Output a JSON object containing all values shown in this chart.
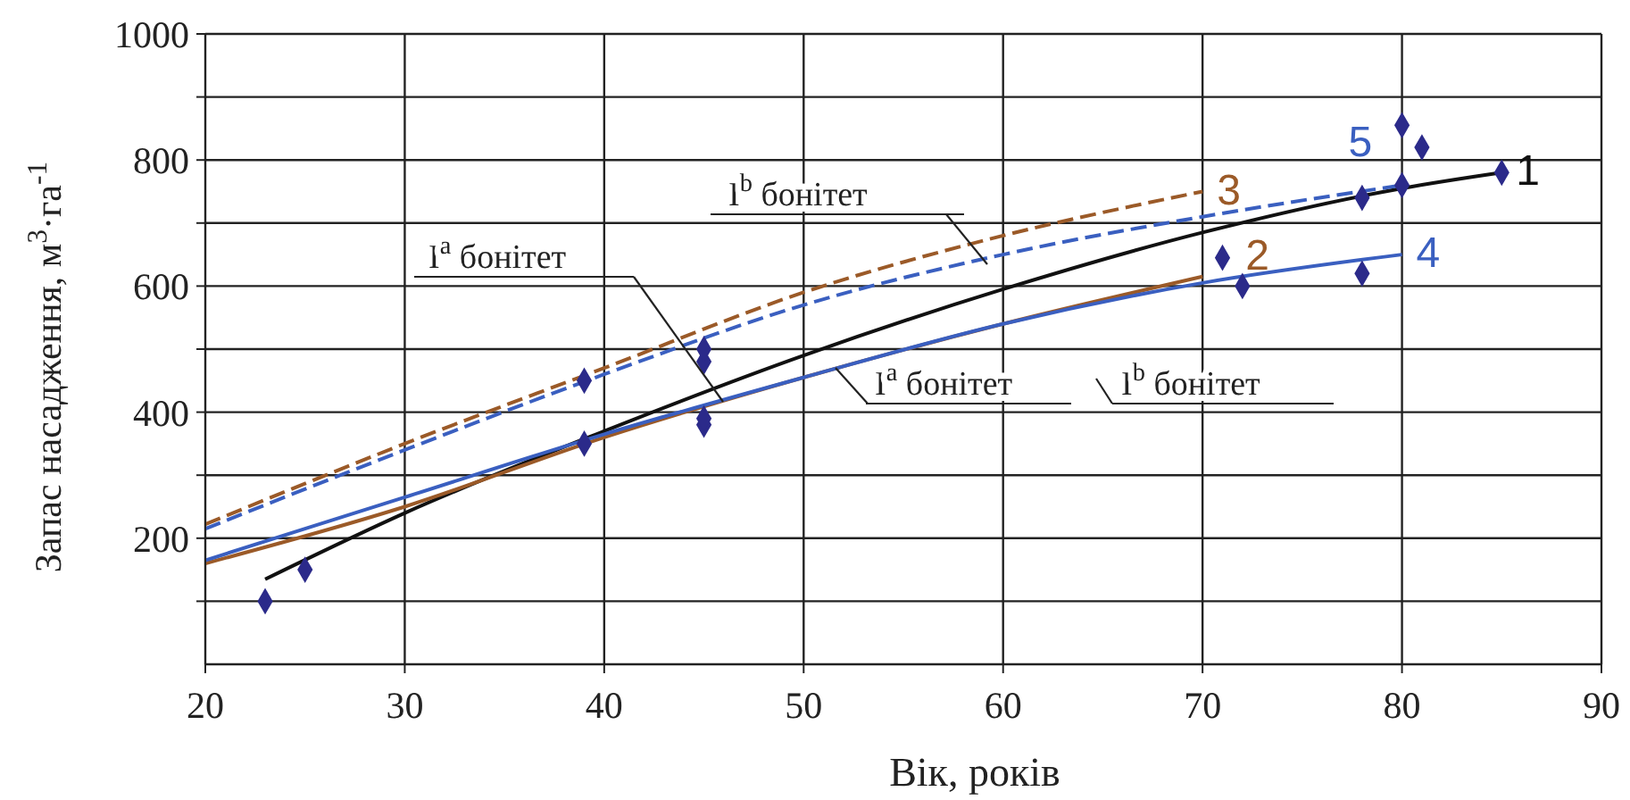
{
  "chart_data": {
    "type": "line",
    "xlabel": "Вік, років",
    "ylabel": "Запас насадження, м$^{3}$·га$^{-1}$",
    "xlim": [
      20,
      90
    ],
    "xticks": [
      20,
      30,
      40,
      50,
      60,
      70,
      80,
      90
    ],
    "ylim": [
      0,
      1000
    ],
    "yticks": [
      {
        "value": 100,
        "label": null
      },
      200,
      {
        "value": 300,
        "label": null
      },
      400,
      {
        "value": 500,
        "label": null
      },
      600,
      {
        "value": 700,
        "label": null
      },
      800,
      {
        "value": 900,
        "label": null
      },
      1000
    ],
    "grid": true,
    "series": [
      {
        "type": "scatter",
        "marker": "diamond",
        "color": "#2b2a8a",
        "x": [
          23,
          25,
          39,
          39,
          45,
          45,
          45,
          45,
          71,
          72,
          78,
          78,
          80,
          80,
          81,
          85
        ],
        "values": [
          100,
          150,
          350,
          450,
          480,
          500,
          380,
          390,
          645,
          600,
          620,
          740,
          760,
          855,
          820,
          780
        ]
      },
      {
        "name": "1",
        "type": "line",
        "line_style": "solid",
        "color": "#111111",
        "x": [
          23,
          30,
          40,
          50,
          60,
          70,
          80,
          85
        ],
        "values": [
          135,
          240,
          370,
          490,
          595,
          685,
          755,
          780
        ]
      },
      {
        "name": "2",
        "type": "line",
        "line_style": "solid",
        "color": "#9b5a28",
        "x": [
          20,
          30,
          40,
          50,
          60,
          70
        ],
        "values": [
          160,
          250,
          360,
          455,
          540,
          615
        ]
      },
      {
        "name": "3",
        "type": "line",
        "line_style": "dashed",
        "color": "#9b5a28",
        "x": [
          20,
          30,
          40,
          50,
          60,
          70
        ],
        "values": [
          222,
          350,
          470,
          590,
          680,
          750
        ]
      },
      {
        "name": "4",
        "type": "line",
        "line_style": "solid",
        "color": "#3a5fc0",
        "x": [
          20,
          30,
          40,
          50,
          60,
          70,
          80
        ],
        "values": [
          165,
          265,
          365,
          455,
          540,
          605,
          650
        ]
      },
      {
        "name": "5",
        "type": "line",
        "line_style": "dashed",
        "color": "#3a5fc0",
        "x": [
          20,
          30,
          40,
          50,
          60,
          70,
          80
        ],
        "values": [
          215,
          340,
          460,
          570,
          650,
          710,
          760
        ]
      }
    ],
    "annotations": [
      "I$^{b}$ бонітет",
      "I$^{a}$ бонітет",
      "I$^{a}$ бонітет",
      "I$^{b}$ бонітет"
    ]
  }
}
